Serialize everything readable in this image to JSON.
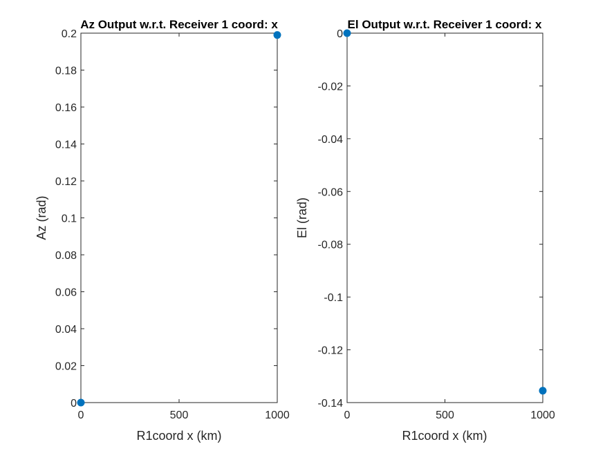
{
  "chart_data": [
    {
      "type": "scatter",
      "title": "Az Output w.r.t. Receiver 1 coord: x",
      "xlabel": "R1coord x (km)",
      "ylabel": "Az (rad)",
      "xlim": [
        0,
        1000
      ],
      "ylim": [
        0,
        0.2
      ],
      "xticks": [
        0,
        500,
        1000
      ],
      "xtick_labels": [
        "0",
        "500",
        "1000"
      ],
      "yticks": [
        0,
        0.02,
        0.04,
        0.06,
        0.08,
        0.1,
        0.12,
        0.14,
        0.16,
        0.18,
        0.2
      ],
      "ytick_labels": [
        "0",
        "0.02",
        "0.04",
        "0.06",
        "0.08",
        "0.1",
        "0.12",
        "0.14",
        "0.16",
        "0.18",
        "0.2"
      ],
      "grid": false,
      "marker_color": "#0072BD",
      "series": [
        {
          "x": [
            0,
            1000
          ],
          "y": [
            0,
            0.199
          ]
        }
      ]
    },
    {
      "type": "scatter",
      "title": "El Output w.r.t. Receiver 1 coord: x",
      "xlabel": "R1coord x (km)",
      "ylabel": "El (rad)",
      "xlim": [
        0,
        1000
      ],
      "ylim": [
        -0.14,
        0
      ],
      "xticks": [
        0,
        500,
        1000
      ],
      "xtick_labels": [
        "0",
        "500",
        "1000"
      ],
      "yticks": [
        -0.14,
        -0.12,
        -0.1,
        -0.08,
        -0.06,
        -0.04,
        -0.02,
        0
      ],
      "ytick_labels": [
        "-0.14",
        "-0.12",
        "-0.1",
        "-0.08",
        "-0.06",
        "-0.04",
        "-0.02",
        "0"
      ],
      "grid": false,
      "marker_color": "#0072BD",
      "series": [
        {
          "x": [
            0,
            1000
          ],
          "y": [
            0,
            -0.1355
          ]
        }
      ]
    }
  ]
}
